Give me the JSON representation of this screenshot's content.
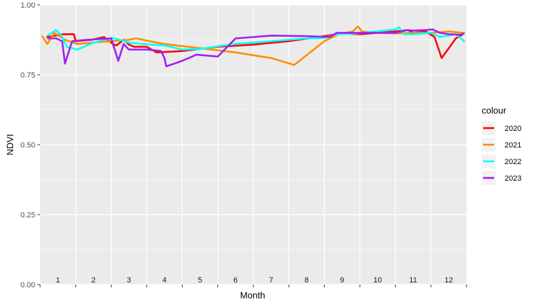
{
  "chart_data": {
    "type": "line",
    "xlabel": "Month",
    "ylabel": "NDVI",
    "ylim": [
      0,
      1
    ],
    "xlim": [
      0.5,
      12.5
    ],
    "y_ticks": [
      "0.00",
      "0.25",
      "0.50",
      "0.75",
      "1.00"
    ],
    "y_tick_values": [
      0,
      0.25,
      0.5,
      0.75,
      1.0
    ],
    "month_labels": [
      "1",
      "2",
      "3",
      "4",
      "5",
      "6",
      "7",
      "8",
      "9",
      "10",
      "11",
      "12"
    ],
    "grid": true,
    "legend": {
      "title": "colour",
      "position": "right"
    },
    "series": [
      {
        "name": "2020",
        "color": "#ff0000",
        "points": [
          [
            0.68,
            0.885
          ],
          [
            0.95,
            0.89
          ],
          [
            1.15,
            0.895
          ],
          [
            1.45,
            0.895
          ],
          [
            1.5,
            0.87
          ],
          [
            1.95,
            0.875
          ],
          [
            2.3,
            0.885
          ],
          [
            2.55,
            0.86
          ],
          [
            2.65,
            0.855
          ],
          [
            2.75,
            0.865
          ],
          [
            2.85,
            0.875
          ],
          [
            3.0,
            0.858
          ],
          [
            3.15,
            0.85
          ],
          [
            3.5,
            0.85
          ],
          [
            3.78,
            0.83
          ],
          [
            4.5,
            0.835
          ],
          [
            5.5,
            0.85
          ],
          [
            6.5,
            0.858
          ],
          [
            7.5,
            0.87
          ],
          [
            8.5,
            0.888
          ],
          [
            9.0,
            0.898
          ],
          [
            9.5,
            0.895
          ],
          [
            10.0,
            0.9
          ],
          [
            10.5,
            0.905
          ],
          [
            10.85,
            0.91
          ],
          [
            11.0,
            0.9
          ],
          [
            11.35,
            0.905
          ],
          [
            11.6,
            0.885
          ],
          [
            11.8,
            0.81
          ],
          [
            12.2,
            0.88
          ],
          [
            12.4,
            0.895
          ]
        ]
      },
      {
        "name": "2021",
        "color": "#ff8c00",
        "points": [
          [
            0.55,
            0.89
          ],
          [
            0.7,
            0.86
          ],
          [
            0.9,
            0.9
          ],
          [
            1.2,
            0.875
          ],
          [
            1.55,
            0.86
          ],
          [
            2.0,
            0.865
          ],
          [
            2.5,
            0.87
          ],
          [
            3.0,
            0.875
          ],
          [
            3.2,
            0.88
          ],
          [
            4.0,
            0.86
          ],
          [
            5.0,
            0.845
          ],
          [
            6.0,
            0.83
          ],
          [
            7.0,
            0.81
          ],
          [
            7.65,
            0.785
          ],
          [
            8.5,
            0.87
          ],
          [
            8.9,
            0.895
          ],
          [
            9.3,
            0.905
          ],
          [
            9.45,
            0.923
          ],
          [
            9.55,
            0.905
          ],
          [
            10.0,
            0.9
          ],
          [
            10.5,
            0.898
          ],
          [
            11.0,
            0.9
          ],
          [
            11.5,
            0.9
          ],
          [
            12.0,
            0.905
          ],
          [
            12.4,
            0.9
          ]
        ]
      },
      {
        "name": "2022",
        "color": "#00ffff",
        "points": [
          [
            0.7,
            0.89
          ],
          [
            0.95,
            0.91
          ],
          [
            1.1,
            0.89
          ],
          [
            1.25,
            0.85
          ],
          [
            1.55,
            0.84
          ],
          [
            1.95,
            0.862
          ],
          [
            2.5,
            0.882
          ],
          [
            2.75,
            0.875
          ],
          [
            3.0,
            0.865
          ],
          [
            3.4,
            0.86
          ],
          [
            4.0,
            0.855
          ],
          [
            4.5,
            0.84
          ],
          [
            5.0,
            0.842
          ],
          [
            5.5,
            0.852
          ],
          [
            6.0,
            0.86
          ],
          [
            7.0,
            0.87
          ],
          [
            8.0,
            0.88
          ],
          [
            8.5,
            0.882
          ],
          [
            8.85,
            0.895
          ],
          [
            9.4,
            0.898
          ],
          [
            9.95,
            0.905
          ],
          [
            10.5,
            0.912
          ],
          [
            10.6,
            0.92
          ],
          [
            10.75,
            0.895
          ],
          [
            11.0,
            0.895
          ],
          [
            11.5,
            0.9
          ],
          [
            11.75,
            0.885
          ],
          [
            12.0,
            0.89
          ],
          [
            12.2,
            0.895
          ],
          [
            12.45,
            0.868
          ]
        ]
      },
      {
        "name": "2023",
        "color": "#a020f0",
        "points": [
          [
            0.7,
            0.88
          ],
          [
            0.95,
            0.88
          ],
          [
            1.12,
            0.87
          ],
          [
            1.2,
            0.79
          ],
          [
            1.4,
            0.87
          ],
          [
            1.8,
            0.875
          ],
          [
            2.5,
            0.88
          ],
          [
            2.7,
            0.8
          ],
          [
            2.85,
            0.86
          ],
          [
            3.0,
            0.84
          ],
          [
            3.5,
            0.84
          ],
          [
            3.9,
            0.835
          ],
          [
            4.0,
            0.81
          ],
          [
            4.05,
            0.78
          ],
          [
            4.5,
            0.8
          ],
          [
            4.9,
            0.822
          ],
          [
            5.5,
            0.815
          ],
          [
            6.0,
            0.88
          ],
          [
            6.5,
            0.885
          ],
          [
            7.0,
            0.89
          ],
          [
            8.0,
            0.888
          ],
          [
            8.65,
            0.885
          ],
          [
            8.85,
            0.9
          ],
          [
            9.0,
            0.9
          ],
          [
            9.5,
            0.9
          ],
          [
            10.0,
            0.9
          ],
          [
            10.5,
            0.9
          ],
          [
            10.85,
            0.91
          ],
          [
            11.0,
            0.908
          ],
          [
            11.35,
            0.91
          ],
          [
            11.55,
            0.912
          ],
          [
            11.75,
            0.9
          ],
          [
            12.0,
            0.895
          ],
          [
            12.35,
            0.893
          ],
          [
            12.45,
            0.9
          ]
        ]
      }
    ]
  }
}
